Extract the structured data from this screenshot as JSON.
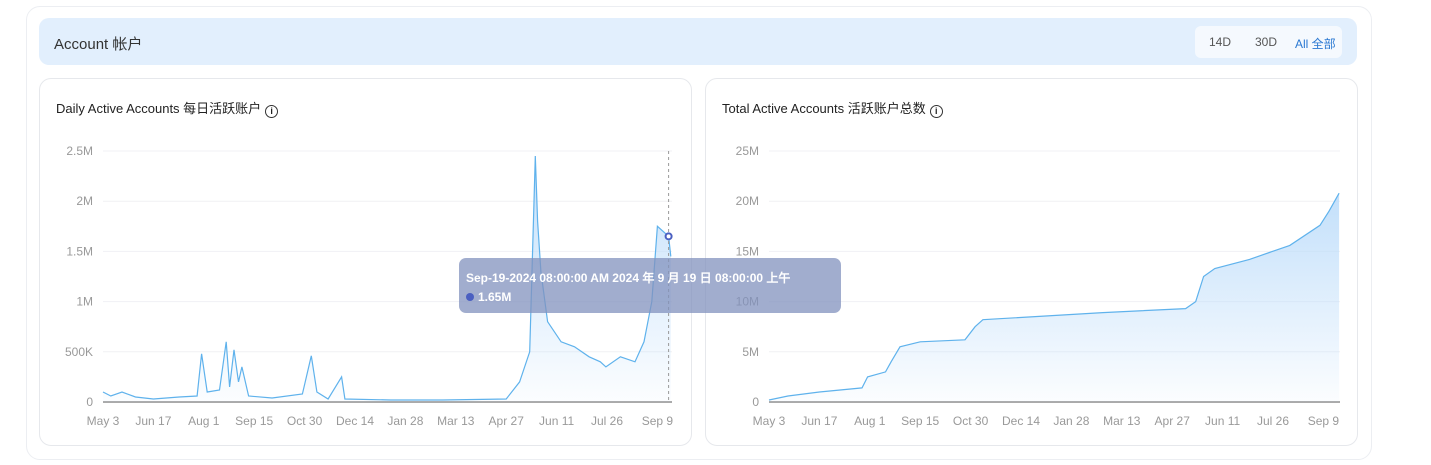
{
  "section": {
    "title": "Account 帐户",
    "ranges": [
      "14D",
      "30D",
      "All 全部"
    ],
    "active_range": "All 全部"
  },
  "colors": {
    "line": "#5fb2ec",
    "fill": "#bcdcfa",
    "header_bg": "#e2effd",
    "tooltip_dot": "#4a5fc1"
  },
  "tooltip": {
    "date": "Sep-19-2024 08:00:00 AM 2024 年 9 月 19 日 08:00:00 上午",
    "value": "1.65M"
  },
  "chart_data": [
    {
      "type": "area",
      "title": "Daily Active Accounts 每日活跃账户",
      "info_icon": "info-icon",
      "yticks": [
        "0",
        "500K",
        "1M",
        "1.5M",
        "2M",
        "2.5M"
      ],
      "ylim": [
        0,
        2500000
      ],
      "xticks": [
        "May 3",
        "Jun 17",
        "Aug 1",
        "Sep 15",
        "Oct 30",
        "Dec 14",
        "Jan 28",
        "Mar 13",
        "Apr 27",
        "Jun 11",
        "Jul 26",
        "Sep 9"
      ],
      "points": [
        [
          "2023-05-03",
          100000
        ],
        [
          "2023-05-10",
          60000
        ],
        [
          "2023-05-20",
          100000
        ],
        [
          "2023-06-01",
          50000
        ],
        [
          "2023-06-17",
          30000
        ],
        [
          "2023-07-10",
          50000
        ],
        [
          "2023-07-26",
          60000
        ],
        [
          "2023-07-30",
          480000
        ],
        [
          "2023-08-04",
          100000
        ],
        [
          "2023-08-15",
          120000
        ],
        [
          "2023-08-21",
          600000
        ],
        [
          "2023-08-24",
          150000
        ],
        [
          "2023-08-28",
          520000
        ],
        [
          "2023-09-01",
          200000
        ],
        [
          "2023-09-04",
          350000
        ],
        [
          "2023-09-10",
          60000
        ],
        [
          "2023-10-01",
          40000
        ],
        [
          "2023-10-28",
          80000
        ],
        [
          "2023-11-05",
          460000
        ],
        [
          "2023-11-10",
          100000
        ],
        [
          "2023-11-20",
          30000
        ],
        [
          "2023-12-02",
          250000
        ],
        [
          "2023-12-05",
          30000
        ],
        [
          "2024-01-15",
          20000
        ],
        [
          "2024-03-01",
          20000
        ],
        [
          "2024-04-27",
          30000
        ],
        [
          "2024-05-09",
          200000
        ],
        [
          "2024-05-18",
          500000
        ],
        [
          "2024-05-23",
          2450000
        ],
        [
          "2024-05-25",
          1800000
        ],
        [
          "2024-05-28",
          1300000
        ],
        [
          "2024-06-03",
          800000
        ],
        [
          "2024-06-15",
          600000
        ],
        [
          "2024-06-27",
          550000
        ],
        [
          "2024-07-10",
          450000
        ],
        [
          "2024-07-20",
          400000
        ],
        [
          "2024-07-25",
          350000
        ],
        [
          "2024-08-07",
          450000
        ],
        [
          "2024-08-20",
          400000
        ],
        [
          "2024-08-28",
          600000
        ],
        [
          "2024-09-04",
          1000000
        ],
        [
          "2024-09-09",
          1750000
        ],
        [
          "2024-09-19",
          1650000
        ],
        [
          "2024-09-21",
          1450000
        ]
      ]
    },
    {
      "type": "area",
      "title": "Total Active Accounts 活跃账户总数",
      "info_icon": "info-icon",
      "yticks": [
        "0",
        "5M",
        "10M",
        "15M",
        "20M",
        "25M"
      ],
      "ylim": [
        0,
        25000000
      ],
      "xticks": [
        "May 3",
        "Jun 17",
        "Aug 1",
        "Sep 15",
        "Oct 30",
        "Dec 14",
        "Jan 28",
        "Mar 13",
        "Apr 27",
        "Jun 11",
        "Jul 26",
        "Sep 9"
      ],
      "points": [
        [
          "2023-05-03",
          200000
        ],
        [
          "2023-05-20",
          600000
        ],
        [
          "2023-06-17",
          1000000
        ],
        [
          "2023-07-25",
          1400000
        ],
        [
          "2023-07-30",
          2500000
        ],
        [
          "2023-08-15",
          3000000
        ],
        [
          "2023-08-20",
          4000000
        ],
        [
          "2023-08-28",
          5500000
        ],
        [
          "2023-09-15",
          6000000
        ],
        [
          "2023-10-25",
          6200000
        ],
        [
          "2023-11-03",
          7500000
        ],
        [
          "2023-11-10",
          8200000
        ],
        [
          "2023-11-25",
          8300000
        ],
        [
          "2024-02-25",
          8900000
        ],
        [
          "2024-05-09",
          9300000
        ],
        [
          "2024-05-18",
          10000000
        ],
        [
          "2024-05-25",
          12500000
        ],
        [
          "2024-06-04",
          13300000
        ],
        [
          "2024-07-05",
          14200000
        ],
        [
          "2024-08-10",
          15600000
        ],
        [
          "2024-09-06",
          17600000
        ],
        [
          "2024-09-14",
          19000000
        ],
        [
          "2024-09-23",
          20800000
        ]
      ]
    }
  ]
}
